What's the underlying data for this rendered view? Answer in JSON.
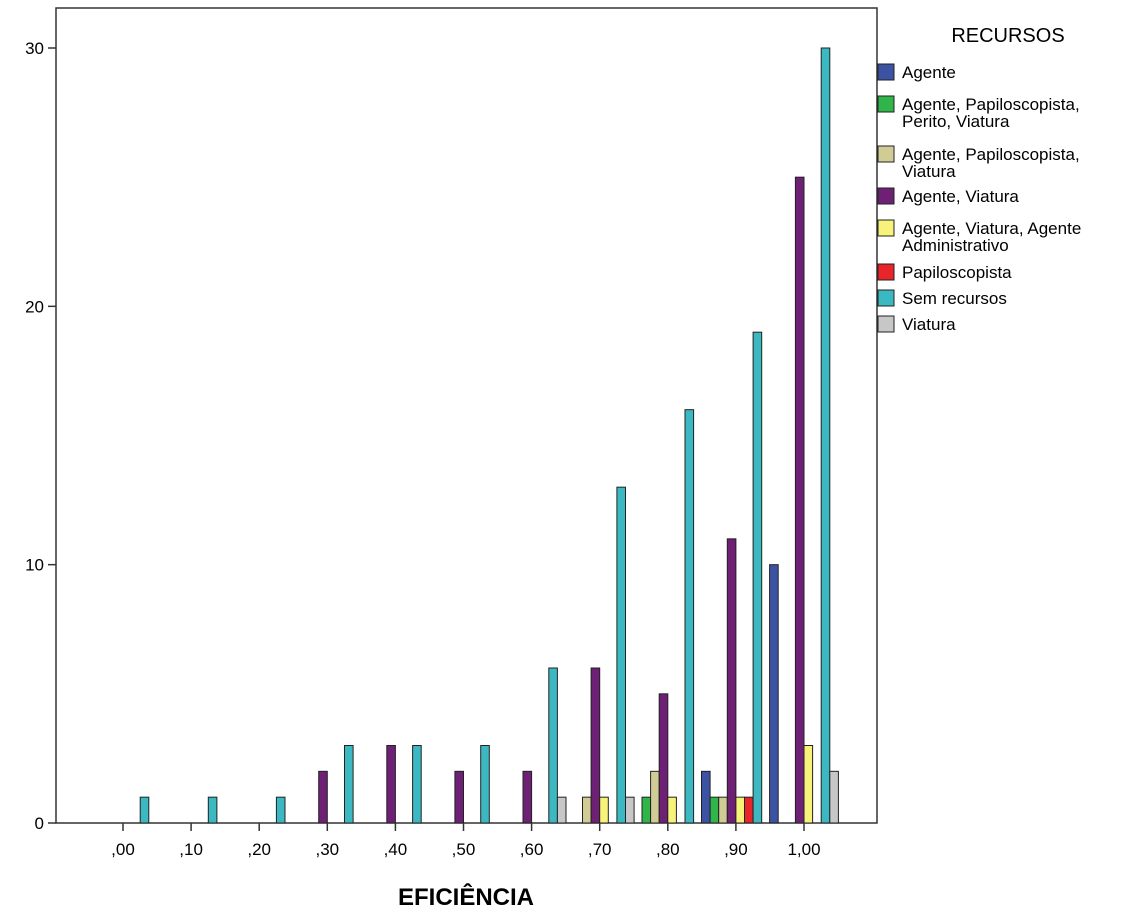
{
  "chart_data": {
    "type": "bar",
    "title": "",
    "xlabel": "EFICIÊNCIA",
    "ylabel": "",
    "ylim": [
      0,
      31.5
    ],
    "yticks": [
      0,
      10,
      20,
      30
    ],
    "grid": false,
    "legend_title": "RECURSOS",
    "legend_position": "right",
    "categories": [
      ",00",
      ",10",
      ",20",
      ",30",
      ",40",
      ",50",
      ",60",
      ",70",
      ",80",
      ",90",
      "1,00"
    ],
    "series": [
      {
        "name": "Agente",
        "color": "#3c53a4",
        "values": [
          0,
          0,
          0,
          0,
          0,
          0,
          0,
          0,
          0,
          2,
          10
        ]
      },
      {
        "name": "Agente, Papiloscopista, Perito, Viatura",
        "color": "#2fb54a",
        "values": [
          0,
          0,
          0,
          0,
          0,
          0,
          0,
          0,
          1,
          1,
          0
        ]
      },
      {
        "name": "Agente, Papiloscopista, Viatura",
        "color": "#d1cc96",
        "values": [
          0,
          0,
          0,
          0,
          0,
          0,
          0,
          1,
          2,
          1,
          0
        ]
      },
      {
        "name": "Agente, Viatura",
        "color": "#6e2075",
        "values": [
          0,
          0,
          0,
          2,
          3,
          2,
          2,
          6,
          5,
          11,
          25
        ]
      },
      {
        "name": "Agente, Viatura, Agente Administrativo",
        "color": "#f6f27a",
        "values": [
          0,
          0,
          0,
          0,
          0,
          0,
          0,
          1,
          1,
          1,
          3
        ]
      },
      {
        "name": "Papiloscopista",
        "color": "#e8262a",
        "values": [
          0,
          0,
          0,
          0,
          0,
          0,
          0,
          0,
          0,
          1,
          0
        ]
      },
      {
        "name": "Sem recursos",
        "color": "#3cb8c3",
        "values": [
          1,
          1,
          1,
          3,
          3,
          3,
          6,
          13,
          16,
          19,
          30
        ]
      },
      {
        "name": "Viatura",
        "color": "#c7c7c7",
        "values": [
          0,
          0,
          0,
          0,
          0,
          0,
          1,
          1,
          0,
          0,
          2
        ]
      }
    ],
    "legend_lines": [
      [
        "Agente"
      ],
      [
        "Agente, Papiloscopista,",
        "Perito, Viatura"
      ],
      [
        "Agente, Papiloscopista,",
        "Viatura"
      ],
      [
        "Agente, Viatura"
      ],
      [
        "Agente, Viatura, Agente",
        "Administrativo"
      ],
      [
        "Papiloscopista"
      ],
      [
        "Sem recursos"
      ],
      [
        "Viatura"
      ]
    ]
  }
}
